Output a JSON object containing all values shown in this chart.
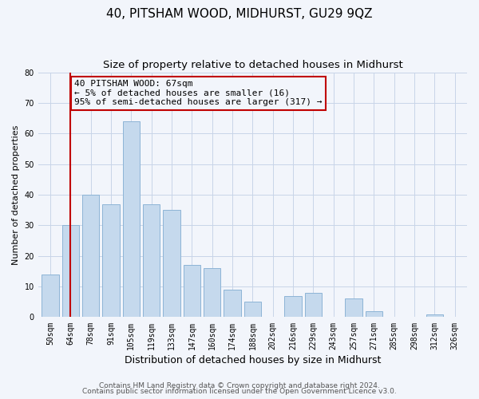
{
  "title": "40, PITSHAM WOOD, MIDHURST, GU29 9QZ",
  "subtitle": "Size of property relative to detached houses in Midhurst",
  "xlabel": "Distribution of detached houses by size in Midhurst",
  "ylabel": "Number of detached properties",
  "categories": [
    "50sqm",
    "64sqm",
    "78sqm",
    "91sqm",
    "105sqm",
    "119sqm",
    "133sqm",
    "147sqm",
    "160sqm",
    "174sqm",
    "188sqm",
    "202sqm",
    "216sqm",
    "229sqm",
    "243sqm",
    "257sqm",
    "271sqm",
    "285sqm",
    "298sqm",
    "312sqm",
    "326sqm"
  ],
  "values": [
    14,
    30,
    40,
    37,
    64,
    37,
    35,
    17,
    16,
    9,
    5,
    0,
    7,
    8,
    0,
    6,
    2,
    0,
    0,
    1,
    0
  ],
  "bar_color": "#c5d9ed",
  "bar_edge_color": "#8db4d6",
  "ylim": [
    0,
    80
  ],
  "yticks": [
    0,
    10,
    20,
    30,
    40,
    50,
    60,
    70,
    80
  ],
  "vline_x": 1,
  "vline_color": "#c00000",
  "annotation_text": "40 PITSHAM WOOD: 67sqm\n← 5% of detached houses are smaller (16)\n95% of semi-detached houses are larger (317) →",
  "annotation_box_color": "#c00000",
  "footer_line1": "Contains HM Land Registry data © Crown copyright and database right 2024.",
  "footer_line2": "Contains public sector information licensed under the Open Government Licence v3.0.",
  "bg_color": "#f2f5fb",
  "grid_color": "#c8d4e8",
  "title_fontsize": 11,
  "subtitle_fontsize": 9.5,
  "xlabel_fontsize": 9,
  "ylabel_fontsize": 8,
  "tick_fontsize": 7,
  "footer_fontsize": 6.5,
  "annotation_fontsize": 8
}
